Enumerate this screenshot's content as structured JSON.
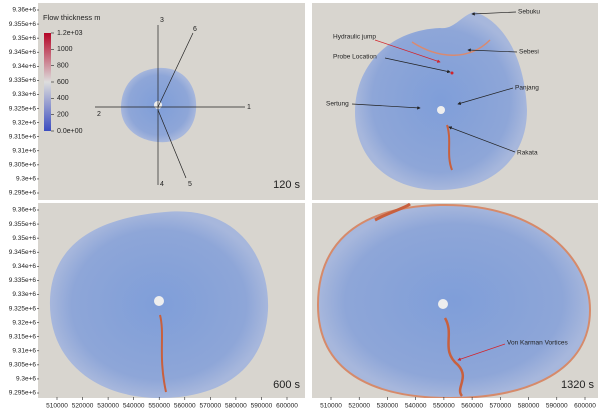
{
  "colorbar": {
    "title": "Flow thickness m",
    "ticks": [
      {
        "value": 1200,
        "label": "1.2e+03"
      },
      1000,
      800,
      600,
      400,
      200,
      {
        "value": 0,
        "label": "0.0e+00"
      }
    ]
  },
  "y_ticks": [
    {
      "value": 9360000,
      "label": "9.36e+6"
    },
    {
      "value": 9355000,
      "label": "9.355e+6"
    },
    {
      "value": 9350000,
      "label": "9.35e+6"
    },
    {
      "value": 9345000,
      "label": "9.345e+6"
    },
    {
      "value": 9340000,
      "label": "9.34e+6"
    },
    {
      "value": 9335000,
      "label": "9.335e+6"
    },
    {
      "value": 9330000,
      "label": "9.33e+6"
    },
    {
      "value": 9325000,
      "label": "9.325e+6"
    },
    {
      "value": 9320000,
      "label": "9.32e+6"
    },
    {
      "value": 9315000,
      "label": "9.315e+6"
    },
    {
      "value": 9310000,
      "label": "9.31e+6"
    },
    {
      "value": 9305000,
      "label": "9.305e+6"
    },
    {
      "value": 9300000,
      "label": "9.3e+6"
    },
    {
      "value": 9295000,
      "label": "9.295e+6"
    }
  ],
  "x_ticks": [
    510000,
    520000,
    530000,
    540000,
    550000,
    560000,
    570000,
    580000,
    590000,
    600000
  ],
  "panels": [
    {
      "time": "120 s",
      "transects": [
        "1",
        "2",
        "3",
        "4",
        "5",
        "6"
      ]
    },
    {
      "annotations": [
        "Sebuku",
        "Sebesi",
        "Hydraulic jump",
        "Probe Location",
        "Panjang",
        "Sertung",
        "Rakata"
      ]
    },
    {
      "time": "600 s"
    },
    {
      "time": "1320 s",
      "annotations": [
        "Von Karman Vortices"
      ]
    }
  ]
}
